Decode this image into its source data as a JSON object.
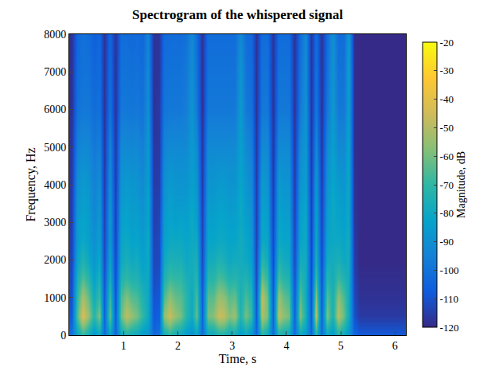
{
  "chart_data": {
    "type": "heatmap",
    "title": "Spectrogram of the whispered signal",
    "x_label": "Time, s",
    "y_label": "Frequency, Hz",
    "colorbar_label": "Magnitude, dB",
    "xlim": [
      0,
      6.2
    ],
    "xticks": [
      1,
      2,
      3,
      4,
      5,
      6
    ],
    "ylim": [
      0,
      8000
    ],
    "yticks": [
      0,
      1000,
      2000,
      3000,
      4000,
      5000,
      6000,
      7000,
      8000
    ],
    "zlim": [
      -120,
      -20
    ],
    "zticks": [
      -120,
      -110,
      -100,
      -90,
      -80,
      -70,
      -60,
      -50,
      -40,
      -30,
      -20
    ],
    "grid": false,
    "x": [
      0.05,
      0.15,
      0.25,
      0.35,
      0.45,
      0.55,
      0.65,
      0.75,
      0.85,
      0.95,
      1.05,
      1.15,
      1.25,
      1.35,
      1.45,
      1.55,
      1.65,
      1.75,
      1.85,
      1.95,
      2.05,
      2.15,
      2.25,
      2.35,
      2.45,
      2.55,
      2.65,
      2.75,
      2.85,
      2.95,
      3.05,
      3.15,
      3.25,
      3.35,
      3.45,
      3.55,
      3.65,
      3.75,
      3.85,
      3.95,
      4.05,
      4.15,
      4.25,
      4.35,
      4.45,
      4.55,
      4.65,
      4.75,
      4.85,
      4.95,
      5.05,
      5.15,
      5.25,
      5.35,
      5.45,
      5.55,
      5.65,
      5.75,
      5.85,
      5.95,
      6.05,
      6.15
    ],
    "y": [
      0,
      500,
      1000,
      1500,
      2000,
      2500,
      3000,
      3500,
      4000,
      5000,
      6000,
      7000,
      8000
    ],
    "cells": [
      [
        -100,
        -108,
        -110,
        -112,
        -113,
        -114,
        -115,
        -115,
        -116,
        -117,
        -118,
        -118,
        -118
      ],
      [
        -82,
        -65,
        -70,
        -76,
        -82,
        -85,
        -86,
        -88,
        -90,
        -95,
        -100,
        -102,
        -104
      ],
      [
        -70,
        -42,
        -52,
        -65,
        -74,
        -80,
        -82,
        -84,
        -86,
        -92,
        -98,
        -100,
        -100
      ],
      [
        -78,
        -55,
        -62,
        -72,
        -80,
        -84,
        -85,
        -86,
        -88,
        -93,
        -98,
        -100,
        -102
      ],
      [
        -88,
        -72,
        -78,
        -84,
        -88,
        -90,
        -92,
        -94,
        -95,
        -98,
        -102,
        -104,
        -106
      ],
      [
        -80,
        -58,
        -68,
        -75,
        -80,
        -84,
        -86,
        -88,
        -90,
        -95,
        -100,
        -102,
        -104
      ],
      [
        -102,
        -106,
        -108,
        -110,
        -112,
        -113,
        -114,
        -115,
        -116,
        -117,
        -118,
        -118,
        -118
      ],
      [
        -82,
        -62,
        -68,
        -76,
        -82,
        -86,
        -86,
        -88,
        -90,
        -94,
        -100,
        -102,
        -104
      ],
      [
        -104,
        -108,
        -110,
        -112,
        -113,
        -114,
        -115,
        -115,
        -116,
        -117,
        -118,
        -118,
        -118
      ],
      [
        -80,
        -62,
        -66,
        -74,
        -80,
        -82,
        -84,
        -86,
        -88,
        -92,
        -98,
        -100,
        -102
      ],
      [
        -74,
        -48,
        -58,
        -70,
        -76,
        -80,
        -82,
        -84,
        -86,
        -92,
        -98,
        -100,
        -102
      ],
      [
        -78,
        -55,
        -64,
        -74,
        -80,
        -83,
        -85,
        -86,
        -88,
        -93,
        -99,
        -101,
        -103
      ],
      [
        -80,
        -60,
        -66,
        -74,
        -78,
        -82,
        -84,
        -86,
        -88,
        -92,
        -98,
        -100,
        -102
      ],
      [
        -86,
        -70,
        -74,
        -80,
        -84,
        -86,
        -88,
        -90,
        -92,
        -96,
        -100,
        -102,
        -104
      ],
      [
        -88,
        -80,
        -80,
        -80,
        -80,
        -80,
        -82,
        -82,
        -84,
        -86,
        -90,
        -92,
        -94
      ],
      [
        -104,
        -108,
        -110,
        -112,
        -113,
        -114,
        -115,
        -115,
        -116,
        -117,
        -118,
        -118,
        -118
      ],
      [
        -100,
        -106,
        -108,
        -110,
        -112,
        -112,
        -113,
        -114,
        -115,
        -116,
        -116,
        -117,
        -117
      ],
      [
        -78,
        -56,
        -66,
        -75,
        -80,
        -84,
        -86,
        -88,
        -90,
        -94,
        -99,
        -101,
        -103
      ],
      [
        -72,
        -46,
        -56,
        -68,
        -75,
        -80,
        -82,
        -84,
        -86,
        -92,
        -98,
        -100,
        -102
      ],
      [
        -78,
        -55,
        -62,
        -70,
        -76,
        -80,
        -84,
        -86,
        -88,
        -92,
        -98,
        -100,
        -102
      ],
      [
        -80,
        -60,
        -64,
        -70,
        -76,
        -80,
        -82,
        -86,
        -88,
        -92,
        -98,
        -100,
        -102
      ],
      [
        -86,
        -72,
        -72,
        -76,
        -80,
        -82,
        -84,
        -86,
        -88,
        -92,
        -96,
        -98,
        -100
      ],
      [
        -90,
        -80,
        -80,
        -78,
        -78,
        -80,
        -80,
        -82,
        -84,
        -86,
        -88,
        -90,
        -92
      ],
      [
        -82,
        -62,
        -66,
        -72,
        -76,
        -80,
        -84,
        -86,
        -88,
        -92,
        -98,
        -100,
        -102
      ],
      [
        -102,
        -106,
        -108,
        -110,
        -112,
        -113,
        -114,
        -115,
        -116,
        -117,
        -118,
        -118,
        -118
      ],
      [
        -80,
        -60,
        -64,
        -72,
        -78,
        -82,
        -84,
        -86,
        -88,
        -92,
        -98,
        -100,
        -102
      ],
      [
        -80,
        -58,
        -64,
        -72,
        -78,
        -82,
        -84,
        -86,
        -88,
        -92,
        -98,
        -100,
        -102
      ],
      [
        -74,
        -46,
        -54,
        -66,
        -74,
        -80,
        -82,
        -84,
        -86,
        -92,
        -98,
        -100,
        -102
      ],
      [
        -74,
        -48,
        -56,
        -68,
        -76,
        -80,
        -82,
        -84,
        -86,
        -92,
        -98,
        -100,
        -102
      ],
      [
        -80,
        -58,
        -64,
        -74,
        -80,
        -82,
        -84,
        -86,
        -88,
        -92,
        -98,
        -100,
        -102
      ],
      [
        -78,
        -54,
        -62,
        -72,
        -78,
        -82,
        -84,
        -86,
        -88,
        -92,
        -98,
        -100,
        -102
      ],
      [
        -86,
        -74,
        -76,
        -76,
        -78,
        -78,
        -80,
        -80,
        -82,
        -84,
        -86,
        -88,
        -92
      ],
      [
        -80,
        -60,
        -66,
        -74,
        -80,
        -82,
        -84,
        -86,
        -88,
        -92,
        -98,
        -100,
        -102
      ],
      [
        -88,
        -70,
        -74,
        -80,
        -84,
        -86,
        -88,
        -90,
        -92,
        -96,
        -100,
        -102,
        -104
      ],
      [
        -104,
        -108,
        -110,
        -112,
        -113,
        -114,
        -115,
        -115,
        -116,
        -117,
        -118,
        -118,
        -118
      ],
      [
        -72,
        -50,
        -48,
        -62,
        -72,
        -80,
        -82,
        -84,
        -86,
        -92,
        -98,
        -100,
        -102
      ],
      [
        -80,
        -60,
        -62,
        -70,
        -78,
        -82,
        -84,
        -86,
        -88,
        -92,
        -98,
        -100,
        -102
      ],
      [
        -102,
        -106,
        -108,
        -110,
        -112,
        -113,
        -114,
        -115,
        -116,
        -117,
        -118,
        -118,
        -118
      ],
      [
        -74,
        -48,
        -54,
        -66,
        -74,
        -80,
        -82,
        -84,
        -86,
        -92,
        -98,
        -100,
        -102
      ],
      [
        -78,
        -56,
        -62,
        -72,
        -78,
        -82,
        -84,
        -86,
        -88,
        -92,
        -98,
        -100,
        -102
      ],
      [
        -80,
        -60,
        -66,
        -74,
        -80,
        -82,
        -84,
        -86,
        -88,
        -92,
        -98,
        -100,
        -102
      ],
      [
        -102,
        -106,
        -108,
        -110,
        -112,
        -113,
        -114,
        -115,
        -116,
        -117,
        -118,
        -118,
        -118
      ],
      [
        -80,
        -58,
        -64,
        -72,
        -78,
        -82,
        -84,
        -86,
        -88,
        -92,
        -98,
        -100,
        -102
      ],
      [
        -86,
        -76,
        -78,
        -78,
        -78,
        -80,
        -80,
        -82,
        -84,
        -86,
        -88,
        -90,
        -92
      ],
      [
        -104,
        -108,
        -110,
        -112,
        -113,
        -114,
        -115,
        -115,
        -116,
        -117,
        -118,
        -118,
        -118
      ],
      [
        -74,
        -48,
        -56,
        -68,
        -76,
        -80,
        -82,
        -84,
        -86,
        -92,
        -98,
        -100,
        -102
      ],
      [
        -102,
        -106,
        -108,
        -110,
        -112,
        -113,
        -114,
        -115,
        -116,
        -117,
        -118,
        -118,
        -118
      ],
      [
        -80,
        -58,
        -64,
        -72,
        -78,
        -82,
        -84,
        -86,
        -88,
        -92,
        -98,
        -100,
        -102
      ],
      [
        -86,
        -76,
        -76,
        -78,
        -78,
        -80,
        -80,
        -80,
        -82,
        -84,
        -86,
        -88,
        -90
      ],
      [
        -74,
        -50,
        -56,
        -68,
        -76,
        -80,
        -82,
        -84,
        -86,
        -92,
        -98,
        -100,
        -102
      ],
      [
        -80,
        -62,
        -66,
        -74,
        -80,
        -82,
        -84,
        -86,
        -88,
        -92,
        -98,
        -100,
        -102
      ],
      [
        -88,
        -78,
        -78,
        -78,
        -78,
        -78,
        -80,
        -80,
        -80,
        -82,
        -84,
        -84,
        -86
      ],
      [
        -104,
        -110,
        -112,
        -114,
        -115,
        -116,
        -117,
        -118,
        -118,
        -119,
        -119,
        -119,
        -119
      ],
      [
        -108,
        -116,
        -118,
        -119,
        -120,
        -120,
        -120,
        -120,
        -120,
        -120,
        -120,
        -120,
        -120
      ],
      [
        -108,
        -116,
        -118,
        -119,
        -120,
        -120,
        -120,
        -120,
        -120,
        -120,
        -120,
        -120,
        -120
      ],
      [
        -108,
        -116,
        -118,
        -119,
        -120,
        -120,
        -120,
        -120,
        -120,
        -120,
        -120,
        -120,
        -120
      ],
      [
        -108,
        -116,
        -118,
        -119,
        -120,
        -120,
        -120,
        -120,
        -120,
        -120,
        -120,
        -120,
        -120
      ],
      [
        -108,
        -116,
        -118,
        -119,
        -120,
        -120,
        -120,
        -120,
        -120,
        -120,
        -120,
        -120,
        -120
      ],
      [
        -108,
        -116,
        -118,
        -119,
        -120,
        -120,
        -120,
        -120,
        -120,
        -120,
        -120,
        -120,
        -120
      ],
      [
        -108,
        -116,
        -118,
        -119,
        -120,
        -120,
        -120,
        -120,
        -120,
        -120,
        -120,
        -120,
        -120
      ],
      [
        -108,
        -116,
        -118,
        -119,
        -120,
        -120,
        -120,
        -120,
        -120,
        -120,
        -120,
        -120,
        -120
      ],
      [
        -108,
        -116,
        -118,
        -119,
        -120,
        -120,
        -120,
        -120,
        -120,
        -120,
        -120,
        -120,
        -120
      ]
    ]
  }
}
